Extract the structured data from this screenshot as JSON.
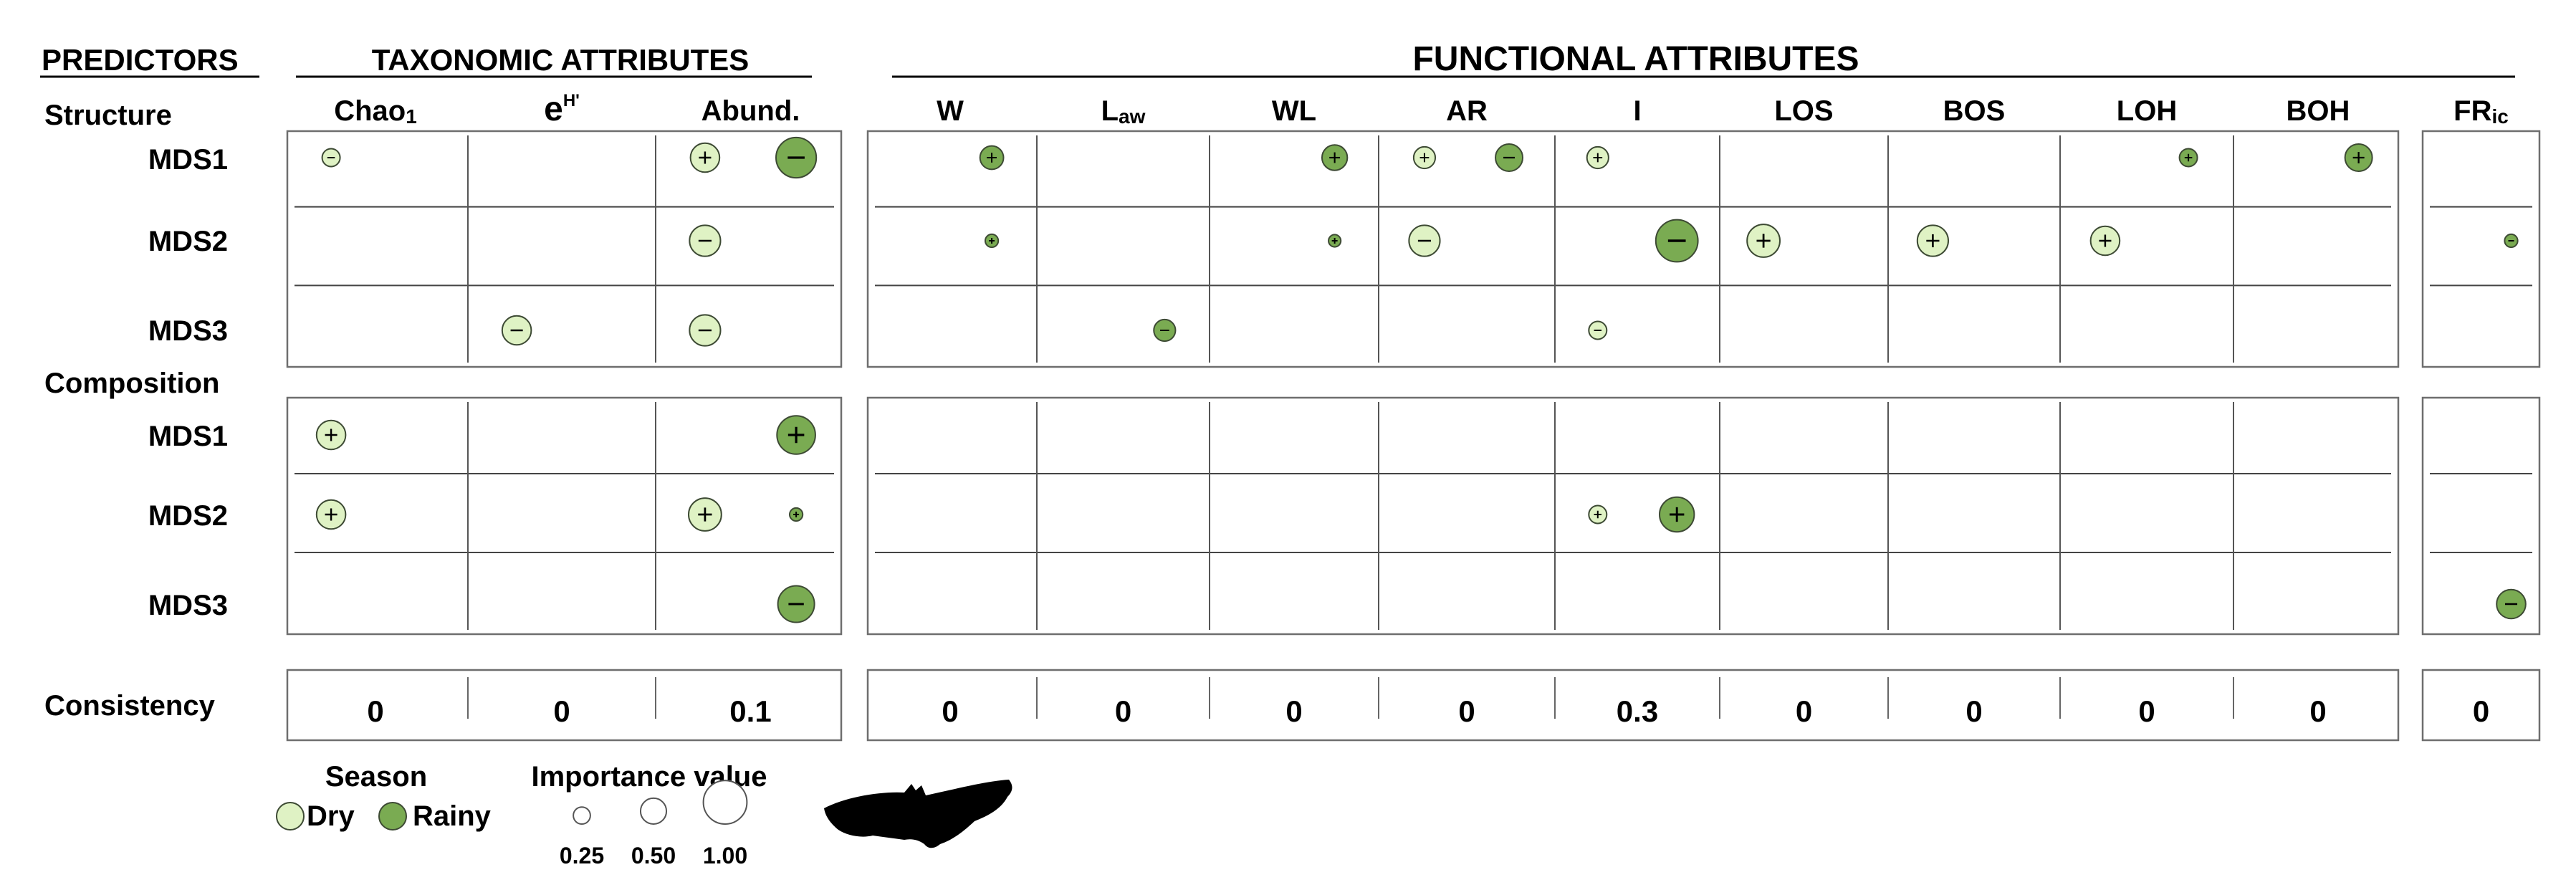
{
  "headers": {
    "predictors": "PREDICTORS",
    "taxonomic": "TAXONOMIC ATTRIBUTES",
    "functional": "FUNCTIONAL ATTRIBUTES"
  },
  "columns": [
    {
      "id": "chao",
      "main": "Chao",
      "sub": "1"
    },
    {
      "id": "shannon",
      "main": "e",
      "sup": "H'"
    },
    {
      "id": "abund",
      "main": "Abund."
    },
    {
      "id": "w",
      "main": "W"
    },
    {
      "id": "law",
      "main": "L",
      "sub": "aw"
    },
    {
      "id": "wl",
      "main": "WL"
    },
    {
      "id": "ar",
      "main": "AR"
    },
    {
      "id": "i",
      "main": "I"
    },
    {
      "id": "los",
      "main": "LOS"
    },
    {
      "id": "bos",
      "main": "BOS"
    },
    {
      "id": "loh",
      "main": "LOH"
    },
    {
      "id": "boh",
      "main": "BOH"
    },
    {
      "id": "fric",
      "main": "FR",
      "sub": "ic"
    }
  ],
  "sections": [
    {
      "id": "structure",
      "label": "Structure",
      "rows": [
        "MDS1",
        "MDS2",
        "MDS3"
      ]
    },
    {
      "id": "composition",
      "label": "Composition",
      "rows": [
        "MDS1",
        "MDS2",
        "MDS3"
      ]
    }
  ],
  "consistency": {
    "label": "Consistency",
    "values": [
      "0",
      "0",
      "0.1",
      "0",
      "0",
      "0",
      "0",
      "0.3",
      "0",
      "0",
      "0",
      "0",
      "0"
    ]
  },
  "effects": [
    {
      "section": "structure",
      "row": 0,
      "col": "chao",
      "season": "dry",
      "sign": "-",
      "importance": 0.25
    },
    {
      "section": "structure",
      "row": 0,
      "col": "abund",
      "season": "dry",
      "sign": "+",
      "importance": 0.55
    },
    {
      "section": "structure",
      "row": 0,
      "col": "abund",
      "season": "rainy",
      "sign": "-",
      "importance": 0.85
    },
    {
      "section": "structure",
      "row": 0,
      "col": "w",
      "season": "rainy",
      "sign": "+",
      "importance": 0.4
    },
    {
      "section": "structure",
      "row": 0,
      "col": "wl",
      "season": "rainy",
      "sign": "+",
      "importance": 0.45
    },
    {
      "section": "structure",
      "row": 0,
      "col": "ar",
      "season": "dry",
      "sign": "+",
      "importance": 0.35
    },
    {
      "section": "structure",
      "row": 0,
      "col": "ar",
      "season": "rainy",
      "sign": "-",
      "importance": 0.5
    },
    {
      "section": "structure",
      "row": 0,
      "col": "i",
      "season": "dry",
      "sign": "+",
      "importance": 0.35
    },
    {
      "section": "structure",
      "row": 0,
      "col": "loh",
      "season": "rainy",
      "sign": "+",
      "importance": 0.25
    },
    {
      "section": "structure",
      "row": 0,
      "col": "boh",
      "season": "rainy",
      "sign": "+",
      "importance": 0.5
    },
    {
      "section": "structure",
      "row": 1,
      "col": "abund",
      "season": "dry",
      "sign": "-",
      "importance": 0.6
    },
    {
      "section": "structure",
      "row": 1,
      "col": "w",
      "season": "rainy",
      "sign": "+",
      "importance": 0.12
    },
    {
      "section": "structure",
      "row": 1,
      "col": "wl",
      "season": "rainy",
      "sign": "+",
      "importance": 0.1
    },
    {
      "section": "structure",
      "row": 1,
      "col": "ar",
      "season": "dry",
      "sign": "-",
      "importance": 0.6
    },
    {
      "section": "structure",
      "row": 1,
      "col": "i",
      "season": "rainy",
      "sign": "-",
      "importance": 0.9
    },
    {
      "section": "structure",
      "row": 1,
      "col": "los",
      "season": "dry",
      "sign": "+",
      "importance": 0.65
    },
    {
      "section": "structure",
      "row": 1,
      "col": "bos",
      "season": "dry",
      "sign": "+",
      "importance": 0.6
    },
    {
      "section": "structure",
      "row": 1,
      "col": "loh",
      "season": "dry",
      "sign": "+",
      "importance": 0.55
    },
    {
      "section": "structure",
      "row": 1,
      "col": "fric",
      "season": "rainy",
      "sign": "-",
      "importance": 0.12
    },
    {
      "section": "structure",
      "row": 2,
      "col": "shannon",
      "season": "dry",
      "sign": "-",
      "importance": 0.55
    },
    {
      "section": "structure",
      "row": 2,
      "col": "abund",
      "season": "dry",
      "sign": "-",
      "importance": 0.6
    },
    {
      "section": "structure",
      "row": 2,
      "col": "law",
      "season": "rainy",
      "sign": "-",
      "importance": 0.35
    },
    {
      "section": "structure",
      "row": 2,
      "col": "i",
      "season": "dry",
      "sign": "-",
      "importance": 0.25
    },
    {
      "section": "composition",
      "row": 0,
      "col": "chao",
      "season": "dry",
      "sign": "+",
      "importance": 0.55
    },
    {
      "section": "composition",
      "row": 0,
      "col": "abund",
      "season": "rainy",
      "sign": "+",
      "importance": 0.8
    },
    {
      "section": "composition",
      "row": 1,
      "col": "chao",
      "season": "dry",
      "sign": "+",
      "importance": 0.55
    },
    {
      "section": "composition",
      "row": 1,
      "col": "abund",
      "season": "dry",
      "sign": "+",
      "importance": 0.65
    },
    {
      "section": "composition",
      "row": 1,
      "col": "abund",
      "season": "rainy",
      "sign": "+",
      "importance": 0.12
    },
    {
      "section": "composition",
      "row": 1,
      "col": "i",
      "season": "dry",
      "sign": "+",
      "importance": 0.25
    },
    {
      "section": "composition",
      "row": 1,
      "col": "i",
      "season": "rainy",
      "sign": "+",
      "importance": 0.7
    },
    {
      "section": "composition",
      "row": 2,
      "col": "abund",
      "season": "rainy",
      "sign": "-",
      "importance": 0.75
    },
    {
      "section": "composition",
      "row": 2,
      "col": "fric",
      "season": "rainy",
      "sign": "-",
      "importance": 0.55
    }
  ],
  "legend": {
    "season_title": "Season",
    "dry_label": "Dry",
    "rainy_label": "Rainy",
    "importance_title": "Importance value",
    "sizes": [
      {
        "value": 0.25,
        "label": "0.25"
      },
      {
        "value": 0.5,
        "label": "0.50"
      },
      {
        "value": 1.0,
        "label": "1.00"
      }
    ]
  },
  "colors": {
    "dry": "#dff2c4",
    "rainy": "#7aab52",
    "stroke": "#3d4a34",
    "grid": "#6e6e6e"
  }
}
